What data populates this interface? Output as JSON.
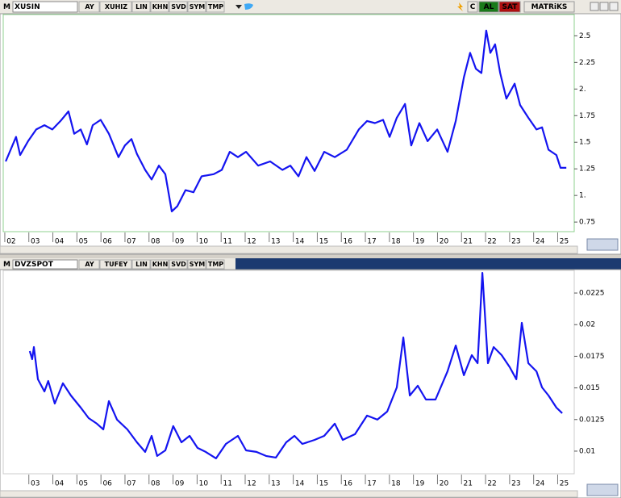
{
  "panels": [
    {
      "toolbar": {
        "logo": "M",
        "symbol": "XUSIN",
        "buttons": [
          "AY",
          "XUHIZ",
          "LIN",
          "KHN",
          "SVD",
          "SYM",
          "TMP"
        ],
        "right": [
          "C",
          "AL",
          "SAT",
          "MATRiKS"
        ]
      }
    },
    {
      "toolbar": {
        "logo": "M",
        "symbol": "DVZSPOT",
        "buttons": [
          "AY",
          "TUFEY",
          "LIN",
          "KHN",
          "SVD",
          "SYM",
          "TMP"
        ]
      }
    }
  ],
  "chart_data": [
    {
      "type": "line",
      "color": "#1414f0",
      "x": [
        2001.77,
        2002.2,
        2002.37,
        2002.7,
        2003.04,
        2003.38,
        2003.71,
        2004.05,
        2004.38,
        2004.62,
        2004.89,
        2005.15,
        2005.39,
        2005.72,
        2006.06,
        2006.46,
        2006.73,
        2007.0,
        2007.23,
        2007.57,
        2007.84,
        2008.14,
        2008.41,
        2008.68,
        2008.91,
        2009.25,
        2009.58,
        2009.92,
        2010.42,
        2010.76,
        2011.09,
        2011.43,
        2011.77,
        2012.27,
        2012.77,
        2013.28,
        2013.61,
        2013.95,
        2014.28,
        2014.62,
        2015.02,
        2015.46,
        2015.96,
        2016.46,
        2016.8,
        2017.13,
        2017.47,
        2017.74,
        2018.04,
        2018.38,
        2018.64,
        2018.98,
        2019.32,
        2019.72,
        2020.15,
        2020.49,
        2020.83,
        2021.09,
        2021.33,
        2021.56,
        2021.76,
        2021.93,
        2022.13,
        2022.34,
        2022.6,
        2022.94,
        2023.17,
        2023.51,
        2023.85,
        2024.08,
        2024.35,
        2024.68,
        2024.85,
        2025.09
      ],
      "values": [
        1.32,
        1.55,
        1.38,
        1.51,
        1.62,
        1.66,
        1.62,
        1.7,
        1.79,
        1.58,
        1.62,
        1.48,
        1.66,
        1.71,
        1.58,
        1.36,
        1.47,
        1.53,
        1.39,
        1.24,
        1.15,
        1.28,
        1.2,
        0.85,
        0.9,
        1.05,
        1.03,
        1.18,
        1.2,
        1.24,
        1.41,
        1.36,
        1.41,
        1.28,
        1.32,
        1.24,
        1.28,
        1.18,
        1.36,
        1.23,
        1.41,
        1.36,
        1.43,
        1.62,
        1.7,
        1.68,
        1.71,
        1.55,
        1.73,
        1.86,
        1.47,
        1.68,
        1.51,
        1.62,
        1.41,
        1.7,
        2.11,
        2.34,
        2.19,
        2.15,
        2.55,
        2.34,
        2.42,
        2.15,
        1.91,
        2.05,
        1.85,
        1.73,
        1.62,
        1.64,
        1.43,
        1.38,
        1.26,
        1.26
      ],
      "xlim": [
        2001.7,
        2025.42
      ],
      "ylim": [
        0.66,
        2.7
      ],
      "xticks": [
        {
          "value": 2002,
          "label": "02"
        },
        {
          "value": 2003,
          "label": "03"
        },
        {
          "value": 2004,
          "label": "04"
        },
        {
          "value": 2005,
          "label": "05"
        },
        {
          "value": 2006,
          "label": "06"
        },
        {
          "value": 2007,
          "label": "07"
        },
        {
          "value": 2008,
          "label": "08"
        },
        {
          "value": 2009,
          "label": "09"
        },
        {
          "value": 2010,
          "label": "10"
        },
        {
          "value": 2011,
          "label": "11"
        },
        {
          "value": 2012,
          "label": "12"
        },
        {
          "value": 2013,
          "label": "13"
        },
        {
          "value": 2014,
          "label": "14"
        },
        {
          "value": 2015,
          "label": "15"
        },
        {
          "value": 2016,
          "label": "16"
        },
        {
          "value": 2017,
          "label": "17"
        },
        {
          "value": 2018,
          "label": "18"
        },
        {
          "value": 2019,
          "label": "19"
        },
        {
          "value": 2020,
          "label": "20"
        },
        {
          "value": 2021,
          "label": "21"
        },
        {
          "value": 2022,
          "label": "22"
        },
        {
          "value": 2023,
          "label": "23"
        },
        {
          "value": 2024,
          "label": "24"
        },
        {
          "value": 2025,
          "label": "25"
        }
      ],
      "yticks": [
        0.75,
        {
          "value": 1,
          "label": "1."
        },
        1.25,
        1.5,
        1.75,
        {
          "value": 2,
          "label": "2."
        },
        2.25,
        2.5
      ],
      "grid": false
    },
    {
      "type": "line",
      "color": "#1414f0",
      "x": [
        2002.77,
        2002.87,
        2002.94,
        2003.11,
        2003.38,
        2003.54,
        2003.81,
        2004.15,
        2004.48,
        2004.89,
        2005.22,
        2005.56,
        2005.83,
        2006.06,
        2006.4,
        2006.83,
        2007.23,
        2007.57,
        2007.84,
        2008.07,
        2008.41,
        2008.74,
        2009.08,
        2009.42,
        2009.75,
        2010.09,
        2010.52,
        2010.93,
        2011.43,
        2011.77,
        2012.2,
        2012.6,
        2013.01,
        2013.44,
        2013.78,
        2014.11,
        2014.62,
        2015.02,
        2015.46,
        2015.79,
        2016.3,
        2016.8,
        2017.23,
        2017.64,
        2018.04,
        2018.31,
        2018.58,
        2018.91,
        2019.25,
        2019.65,
        2020.15,
        2020.49,
        2020.83,
        2021.16,
        2021.4,
        2021.6,
        2021.83,
        2022.07,
        2022.4,
        2022.74,
        2023.01,
        2023.24,
        2023.51,
        2023.85,
        2024.08,
        2024.35,
        2024.68,
        2024.92
      ],
      "values": [
        0.01791,
        0.01727,
        0.01823,
        0.01568,
        0.01472,
        0.01555,
        0.01376,
        0.01536,
        0.0144,
        0.01344,
        0.01261,
        0.01217,
        0.01172,
        0.01395,
        0.01249,
        0.01172,
        0.0107,
        0.00994,
        0.01121,
        0.00962,
        0.01006,
        0.01198,
        0.0107,
        0.01121,
        0.01026,
        0.00994,
        0.00943,
        0.01057,
        0.01121,
        0.01006,
        0.00994,
        0.00962,
        0.00949,
        0.0107,
        0.01121,
        0.01057,
        0.01089,
        0.01121,
        0.01217,
        0.01089,
        0.01134,
        0.01281,
        0.01249,
        0.01313,
        0.01504,
        0.01899,
        0.0144,
        0.01517,
        0.01408,
        0.01408,
        0.01631,
        0.01835,
        0.016,
        0.01759,
        0.01695,
        0.02409,
        0.01695,
        0.01823,
        0.01759,
        0.01663,
        0.01568,
        0.02014,
        0.01695,
        0.01631,
        0.01504,
        0.0144,
        0.01344,
        0.013
      ],
      "xlim": [
        2001.7,
        2025.42
      ],
      "ylim": [
        0.00821,
        0.02429
      ],
      "xticks": [
        {
          "value": 2003,
          "label": "03"
        },
        {
          "value": 2004,
          "label": "04"
        },
        {
          "value": 2005,
          "label": "05"
        },
        {
          "value": 2006,
          "label": "06"
        },
        {
          "value": 2007,
          "label": "07"
        },
        {
          "value": 2008,
          "label": "08"
        },
        {
          "value": 2009,
          "label": "09"
        },
        {
          "value": 2010,
          "label": "10"
        },
        {
          "value": 2011,
          "label": "11"
        },
        {
          "value": 2012,
          "label": "12"
        },
        {
          "value": 2013,
          "label": "13"
        },
        {
          "value": 2014,
          "label": "14"
        },
        {
          "value": 2015,
          "label": "15"
        },
        {
          "value": 2016,
          "label": "16"
        },
        {
          "value": 2017,
          "label": "17"
        },
        {
          "value": 2018,
          "label": "18"
        },
        {
          "value": 2019,
          "label": "19"
        },
        {
          "value": 2020,
          "label": "20"
        },
        {
          "value": 2021,
          "label": "21"
        },
        {
          "value": 2022,
          "label": "22"
        },
        {
          "value": 2023,
          "label": "23"
        },
        {
          "value": 2024,
          "label": "24"
        },
        {
          "value": 2025,
          "label": "25"
        }
      ],
      "yticks": [
        0.01,
        0.0125,
        0.015,
        0.0175,
        0.02,
        0.0225
      ],
      "grid": false
    }
  ]
}
